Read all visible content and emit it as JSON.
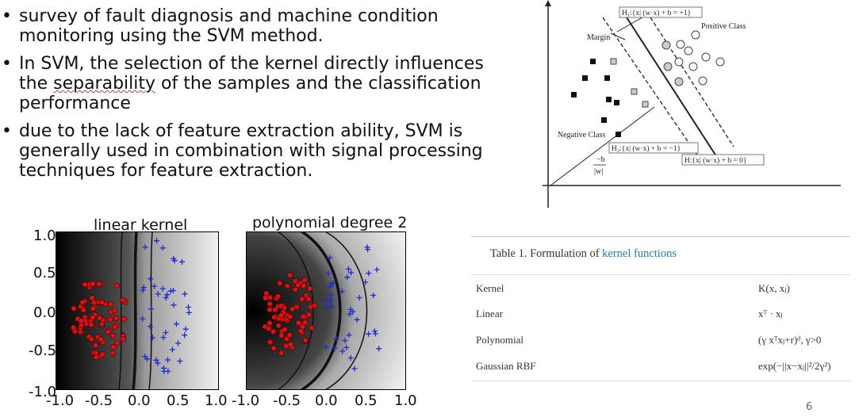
{
  "bullets": [
    {
      "text": "survey of fault diagnosis and machine condition monitoring using the SVM method."
    },
    {
      "text_pre": "In SVM, the selection of the kernel directly influences the ",
      "text_squig": "separability",
      "text_post": " of the samples and the classification performance"
    },
    {
      "text": "due to the lack of feature extraction ability, SVM is generally used in combination with signal processing techniques for feature extraction."
    }
  ],
  "bullet_char": "•",
  "plots": [
    {
      "title": "linear kernel",
      "yticks": [
        "1.0",
        "0.5",
        "0.0",
        "-0.5",
        "-1.0"
      ],
      "xticks": [
        "-1.0",
        "-0.5",
        "0.0",
        "0.5",
        "1.0"
      ]
    },
    {
      "title": "polynomial degree 2",
      "xticks": [
        "-1.0",
        "-0.5",
        "0.0",
        "0.5",
        "1.0"
      ]
    }
  ],
  "svm_diagram": {
    "h1": "H₁:{x| (w·x) + b = +1}",
    "h2": "H₂:{x| (w·x) + b = −1}",
    "h": "H:{x| (w·x) + b = 0}",
    "margin": "Margin",
    "positive": "Positive Class",
    "negative": "Negative Class",
    "bias_num": "−b",
    "bias_den": "|w|"
  },
  "table": {
    "caption_prefix": "Table 1. Formulation of ",
    "caption_link": "kernel functions",
    "rows": [
      {
        "name": "Kernel",
        "formula": "K(x, xⱼ)"
      },
      {
        "name": "Linear",
        "formula": "xᵀ · xⱼ"
      },
      {
        "name": "Polynomial",
        "formula": "(γ xᵀxⱼ+r)ᵈ, γ>0"
      },
      {
        "name": "Gaussian RBF",
        "formula": "exp(−||x−xⱼ||²/2γ²)"
      }
    ]
  },
  "page_number": "6"
}
